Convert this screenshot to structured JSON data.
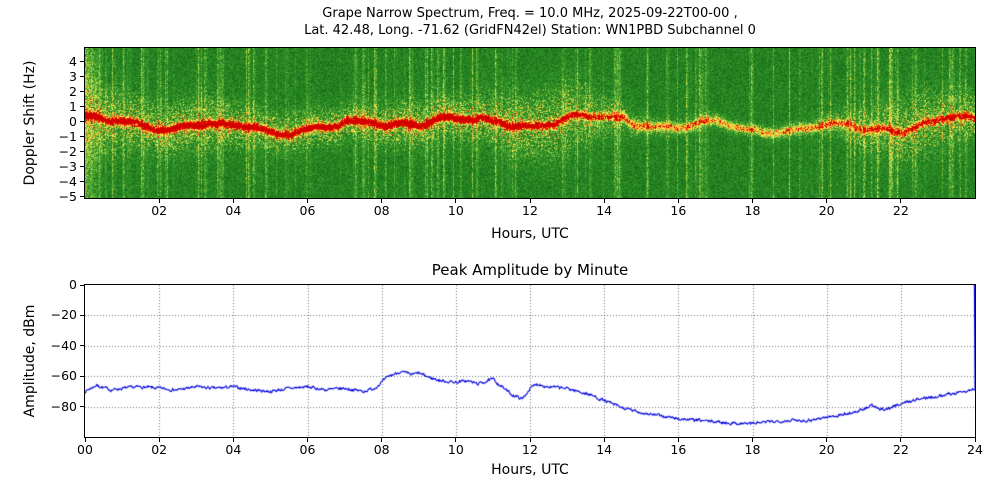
{
  "figure": {
    "background": "#ffffff"
  },
  "spectrogram": {
    "title_line1": "Grape Narrow Spectrum, Freq. = 10.0 MHz, 2025-09-22T00-00 ,",
    "title_line2": "Lat.  42.48, Long. -71.62 (GridFN42el) Station: WN1PBD Subchannel 0",
    "ylabel": "Doppler Shift (Hz)",
    "xlabel": "Hours, UTC",
    "xticks": [
      {
        "v": 2,
        "label": "02"
      },
      {
        "v": 4,
        "label": "04"
      },
      {
        "v": 6,
        "label": "06"
      },
      {
        "v": 8,
        "label": "08"
      },
      {
        "v": 10,
        "label": "10"
      },
      {
        "v": 12,
        "label": "12"
      },
      {
        "v": 14,
        "label": "14"
      },
      {
        "v": 16,
        "label": "16"
      },
      {
        "v": 18,
        "label": "18"
      },
      {
        "v": 20,
        "label": "20"
      },
      {
        "v": 22,
        "label": "22"
      }
    ],
    "yticks": [
      {
        "v": 4,
        "label": "4"
      },
      {
        "v": 3,
        "label": "3"
      },
      {
        "v": 2,
        "label": "2"
      },
      {
        "v": 1,
        "label": "1"
      },
      {
        "v": 0,
        "label": "0"
      },
      {
        "v": -1,
        "label": "−1"
      },
      {
        "v": -2,
        "label": "−2"
      },
      {
        "v": -3,
        "label": "−3"
      },
      {
        "v": -4,
        "label": "−4"
      },
      {
        "v": -5,
        "label": "−5"
      }
    ]
  },
  "amplitude": {
    "title": "Peak Amplitude by Minute",
    "ylabel": "Amplitude, dBm",
    "xlabel": "Hours, UTC",
    "xticks": [
      {
        "v": 0,
        "label": "00"
      },
      {
        "v": 2,
        "label": "02"
      },
      {
        "v": 4,
        "label": "04"
      },
      {
        "v": 6,
        "label": "06"
      },
      {
        "v": 8,
        "label": "08"
      },
      {
        "v": 10,
        "label": "10"
      },
      {
        "v": 12,
        "label": "12"
      },
      {
        "v": 14,
        "label": "14"
      },
      {
        "v": 16,
        "label": "16"
      },
      {
        "v": 18,
        "label": "18"
      },
      {
        "v": 20,
        "label": "20"
      },
      {
        "v": 22,
        "label": "22"
      },
      {
        "v": 24,
        "label": "24"
      }
    ],
    "yticks": [
      {
        "v": 0,
        "label": "0"
      },
      {
        "v": -20,
        "label": "−20"
      },
      {
        "v": -40,
        "label": "−40"
      },
      {
        "v": -60,
        "label": "−60"
      },
      {
        "v": -80,
        "label": "−80"
      }
    ]
  },
  "chart_data": [
    {
      "type": "heatmap",
      "title": "Grape Narrow Spectrum, Freq. = 10.0 MHz, 2025-09-22T00-00 , Lat. 42.48, Long. -71.62 (GridFN42el) Station: WN1PBD Subchannel 0",
      "xlabel": "Hours, UTC",
      "ylabel": "Doppler Shift (Hz)",
      "x_range_hours": [
        0,
        24
      ],
      "y_range_hz": [
        -5.1,
        4.9
      ],
      "colormap": [
        "#0d4d0d",
        "#1d7a1d",
        "#f2f25a",
        "#ffcc33",
        "#d40000"
      ],
      "description": "Doppler carrier trace hugging 0 Hz: intense yellow/red ridge from 00-11 UTC wandering between +0.5 and -1 Hz, broad yellow scatter around 11-14 UTC, thin faint yellow line 14-20 UTC, widening yellow noise band 21-24 UTC; speckled green background with sporadic vertical streaks",
      "band_center_hz": 0,
      "hours": [
        0,
        1,
        2,
        3,
        4,
        5,
        6,
        7,
        8,
        9,
        10,
        11,
        12,
        13,
        14,
        15,
        16,
        17,
        18,
        19,
        20,
        21,
        22,
        23,
        24
      ],
      "band_intensity": [
        0.95,
        0.9,
        0.95,
        1.0,
        0.95,
        0.9,
        0.92,
        0.95,
        1.0,
        1.0,
        0.98,
        0.95,
        0.85,
        0.8,
        0.62,
        0.5,
        0.45,
        0.42,
        0.4,
        0.42,
        0.48,
        0.55,
        0.65,
        0.72,
        0.7
      ],
      "noise_spread_hz": [
        1.6,
        1.3,
        1.1,
        1.2,
        1.0,
        0.9,
        0.9,
        0.85,
        0.9,
        1.0,
        0.95,
        1.2,
        1.5,
        1.7,
        1.0,
        0.5,
        0.4,
        0.35,
        0.3,
        0.35,
        0.5,
        1.0,
        1.6,
        1.4,
        1.1
      ],
      "x_ticks_hours": [
        2,
        4,
        6,
        8,
        10,
        12,
        14,
        16,
        18,
        20,
        22
      ],
      "y_ticks_hz": [
        4,
        3,
        2,
        1,
        0,
        -1,
        -2,
        -3,
        -4,
        -5
      ]
    },
    {
      "type": "line",
      "name": "Peak Amplitude",
      "title": "Peak Amplitude by Minute",
      "xlabel": "Hours, UTC",
      "ylabel": "Amplitude, dBm",
      "color": "#0000dd",
      "xlim": [
        0,
        24
      ],
      "ylim": [
        -100,
        0
      ],
      "grid": "dotted",
      "x_hours": [
        0,
        0.3,
        0.7,
        1,
        1.5,
        2,
        2.5,
        3,
        3.5,
        4,
        4.5,
        5,
        5.5,
        6,
        6.5,
        7,
        7.5,
        7.8,
        8,
        8.2,
        8.5,
        8.8,
        9,
        9.3,
        9.6,
        10,
        10.3,
        10.6,
        11,
        11.2,
        11.5,
        11.8,
        12,
        12.2,
        12.5,
        13,
        13.3,
        13.6,
        14,
        14.5,
        15,
        15.5,
        16,
        16.5,
        17,
        17.5,
        18,
        18.5,
        19,
        19.5,
        20,
        20.5,
        21,
        21.2,
        21.4,
        21.7,
        22,
        22.5,
        23,
        23.5,
        23.9,
        24
      ],
      "y_dbm": [
        -70,
        -66,
        -69,
        -68,
        -67,
        -68,
        -69,
        -67,
        -68,
        -67,
        -69,
        -70,
        -68,
        -67,
        -69,
        -68,
        -70,
        -68,
        -64,
        -60,
        -57,
        -59,
        -58,
        -61,
        -63,
        -64,
        -63,
        -65,
        -62,
        -66,
        -72,
        -75,
        -68,
        -65,
        -67,
        -68,
        -70,
        -72,
        -76,
        -81,
        -84,
        -86,
        -88,
        -89,
        -90,
        -91,
        -91,
        -90,
        -89,
        -89,
        -87,
        -85,
        -82,
        -79,
        -82,
        -81,
        -78,
        -75,
        -73,
        -71,
        -69,
        -68
      ],
      "end_spike": {
        "x": 24,
        "to_dbm": 0
      }
    }
  ]
}
